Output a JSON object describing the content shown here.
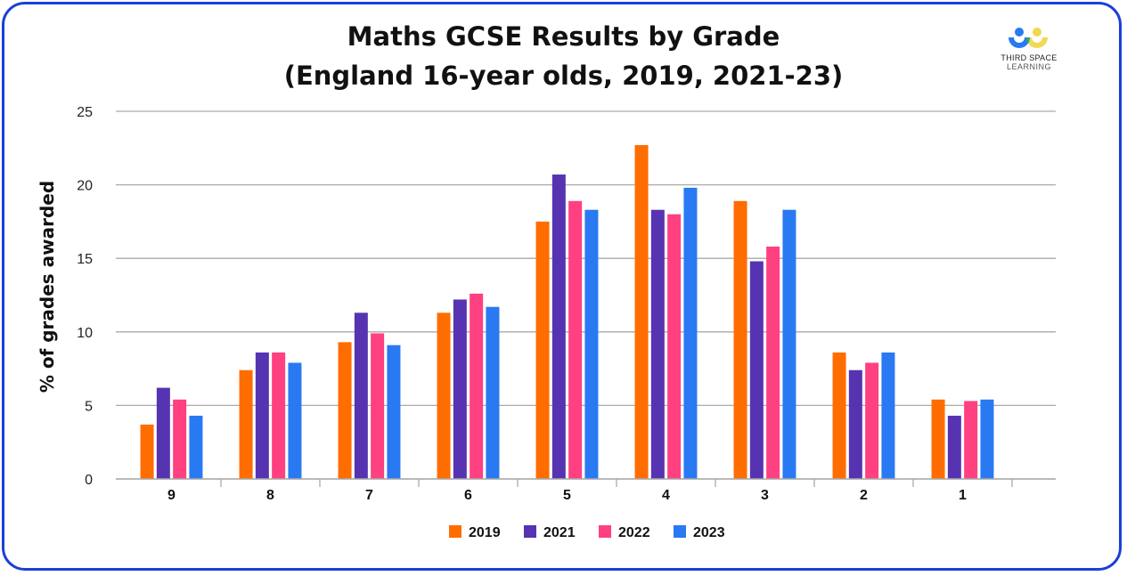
{
  "chart_data": {
    "type": "bar",
    "title": [
      "Maths GCSE Results by Grade",
      "(England 16-year olds, 2019, 2021-23)"
    ],
    "xlabel": "",
    "ylabel": "% of grades awarded",
    "ylim": [
      0,
      25
    ],
    "yticks": [
      0,
      5,
      10,
      15,
      20,
      25
    ],
    "grid": true,
    "legend": "bottom",
    "categories": [
      "9",
      "8",
      "7",
      "6",
      "5",
      "4",
      "3",
      "2",
      "1"
    ],
    "series": [
      {
        "name": "2019",
        "color": "#ff6d00",
        "values": [
          3.7,
          7.4,
          9.3,
          11.3,
          17.5,
          22.7,
          18.9,
          8.6,
          5.4
        ]
      },
      {
        "name": "2021",
        "color": "#5634b1",
        "values": [
          6.2,
          8.6,
          11.3,
          12.2,
          20.7,
          18.3,
          14.8,
          7.4,
          4.3
        ]
      },
      {
        "name": "2022",
        "color": "#ff4081",
        "values": [
          5.4,
          8.6,
          9.9,
          12.6,
          18.9,
          18.0,
          15.8,
          7.9,
          5.3
        ]
      },
      {
        "name": "2023",
        "color": "#2979f2",
        "values": [
          4.3,
          7.9,
          9.1,
          11.7,
          18.3,
          19.8,
          18.3,
          8.6,
          5.4
        ]
      }
    ]
  },
  "logo": {
    "line1": "THIRD SPACE",
    "line2": "LEARNING"
  }
}
